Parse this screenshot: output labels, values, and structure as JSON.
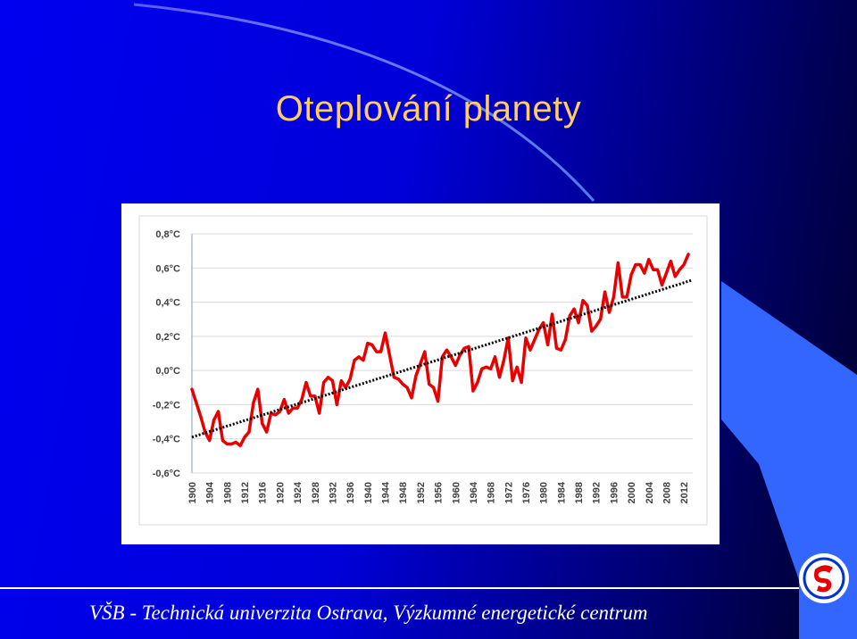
{
  "slide": {
    "title": "Oteplování planety",
    "footer": "VŠB - Technická univerzita Ostrava, Výzkumné energetické centrum"
  },
  "colors": {
    "title": "#ffcc66",
    "background_left": "#0000f0",
    "background_right": "#00002a",
    "series": "#e60000",
    "trend": "#000000",
    "footer_text": "#ffffff"
  },
  "logo": {
    "icon": "university-logo-icon"
  },
  "chart_data": {
    "type": "line",
    "title": "",
    "xlabel": "",
    "ylabel": "",
    "ylim": [
      -0.6,
      0.8
    ],
    "y_ticks": [
      "0,8°C",
      "0,6°C",
      "0,4°C",
      "0,2°C",
      "0,0°C",
      "-0,2°C",
      "-0,4°C",
      "-0,6°C"
    ],
    "y_tick_values": [
      0.8,
      0.6,
      0.4,
      0.2,
      0.0,
      -0.2,
      -0.4,
      -0.6
    ],
    "x_ticks": [
      "1900",
      "1904",
      "1908",
      "1912",
      "1916",
      "1920",
      "1924",
      "1928",
      "1932",
      "1936",
      "1940",
      "1944",
      "1948",
      "1952",
      "1956",
      "1960",
      "1964",
      "1968",
      "1972",
      "1976",
      "1980",
      "1984",
      "1988",
      "1992",
      "1996",
      "2000",
      "2004",
      "2008",
      "2012"
    ],
    "grid": true,
    "legend": "none",
    "series": [
      {
        "style": "solid",
        "x_start": 1900,
        "values": [
          -0.11,
          -0.19,
          -0.27,
          -0.36,
          -0.41,
          -0.29,
          -0.24,
          -0.41,
          -0.43,
          -0.43,
          -0.42,
          -0.44,
          -0.39,
          -0.36,
          -0.19,
          -0.11,
          -0.31,
          -0.36,
          -0.25,
          -0.26,
          -0.24,
          -0.17,
          -0.25,
          -0.22,
          -0.22,
          -0.17,
          -0.07,
          -0.15,
          -0.15,
          -0.25,
          -0.07,
          -0.04,
          -0.06,
          -0.2,
          -0.06,
          -0.1,
          -0.05,
          0.06,
          0.08,
          0.06,
          0.16,
          0.15,
          0.11,
          0.11,
          0.22,
          0.09,
          -0.04,
          -0.05,
          -0.08,
          -0.1,
          -0.16,
          -0.03,
          0.04,
          0.11,
          -0.08,
          -0.1,
          -0.18,
          0.08,
          0.12,
          0.08,
          0.03,
          0.09,
          0.13,
          0.14,
          -0.12,
          -0.07,
          0.01,
          0.02,
          0.01,
          0.08,
          -0.04,
          0.06,
          0.19,
          -0.06,
          0.02,
          -0.07,
          0.19,
          0.12,
          0.18,
          0.24,
          0.28,
          0.15,
          0.33,
          0.13,
          0.12,
          0.18,
          0.32,
          0.36,
          0.28,
          0.41,
          0.38,
          0.23,
          0.26,
          0.3,
          0.46,
          0.34,
          0.43,
          0.63,
          0.43,
          0.43,
          0.56,
          0.62,
          0.62,
          0.57,
          0.65,
          0.59,
          0.59,
          0.5,
          0.57,
          0.64,
          0.55,
          0.59,
          0.62,
          0.68
        ]
      },
      {
        "style": "dotted",
        "x": [
          1900,
          2014
        ],
        "values": [
          -0.39,
          0.53
        ]
      }
    ]
  }
}
